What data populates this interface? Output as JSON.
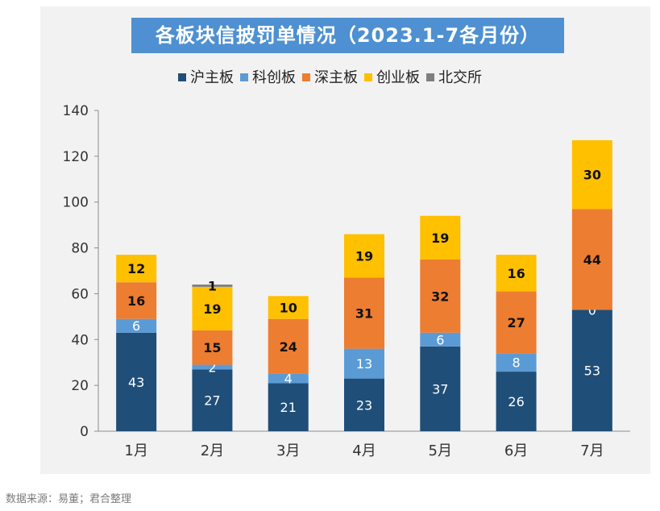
{
  "chart_data": {
    "type": "bar",
    "stacked": true,
    "title": "各板块信披罚单情况（2023.1-7各月份）",
    "categories": [
      "1月",
      "2月",
      "3月",
      "4月",
      "5月",
      "6月",
      "7月"
    ],
    "series": [
      {
        "name": "沪主板",
        "color": "#1f4e79",
        "values": [
          43,
          27,
          21,
          23,
          37,
          26,
          53
        ]
      },
      {
        "name": "科创板",
        "color": "#5b9bd5",
        "values": [
          6,
          2,
          4,
          13,
          6,
          8,
          0
        ]
      },
      {
        "name": "深主板",
        "color": "#ed7d31",
        "values": [
          16,
          15,
          24,
          31,
          32,
          27,
          44
        ]
      },
      {
        "name": "创业板",
        "color": "#ffc000",
        "values": [
          12,
          19,
          10,
          19,
          19,
          16,
          30
        ]
      },
      {
        "name": "北交所",
        "color": "#7f7f7f",
        "values": [
          0,
          1,
          0,
          0,
          0,
          0,
          0
        ]
      }
    ],
    "ylim": [
      0,
      140
    ],
    "yticks": [
      0,
      20,
      40,
      60,
      80,
      100,
      120,
      140
    ],
    "xlabel": "",
    "ylabel": "",
    "legend_position": "top"
  },
  "source_note": "数据来源：易董；君合整理"
}
